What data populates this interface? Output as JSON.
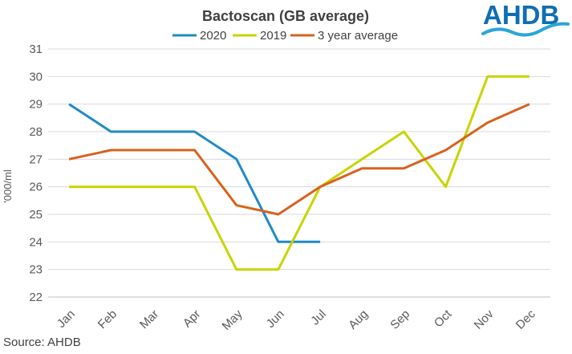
{
  "brand": {
    "logo_text": "AHDB",
    "logo_color": "#0f6eb4",
    "wave_color": "#2aa6d9"
  },
  "source_text": "Source: AHDB",
  "colors": {
    "grid": "#d9d9d9",
    "axis": "#bfbfbf"
  },
  "chart_data": {
    "type": "line",
    "title": "Bactoscan (GB average)",
    "ylabel": "'000/ml",
    "xlabel": "",
    "categories": [
      "Jan",
      "Feb",
      "Mar",
      "Apr",
      "May",
      "Jun",
      "Jul",
      "Aug",
      "Sep",
      "Oct",
      "Nov",
      "Dec"
    ],
    "ylim": [
      22,
      31
    ],
    "yticks": [
      22,
      23,
      24,
      25,
      26,
      27,
      28,
      29,
      30,
      31
    ],
    "grid": true,
    "legend_position": "top",
    "series": [
      {
        "name": "2020",
        "color": "#1f8ac9",
        "values": [
          29,
          28,
          28,
          28,
          27,
          24,
          24,
          null,
          null,
          null,
          null,
          null
        ]
      },
      {
        "name": "2019",
        "color": "#c8d400",
        "values": [
          26,
          26,
          26,
          26,
          23,
          23,
          26,
          27,
          28,
          26,
          30,
          30
        ]
      },
      {
        "name": "3 year average",
        "color": "#d8621e",
        "values": [
          27,
          27.33,
          27.33,
          27.33,
          25.33,
          25,
          26,
          26.67,
          26.67,
          27.33,
          28.33,
          29
        ]
      }
    ]
  }
}
